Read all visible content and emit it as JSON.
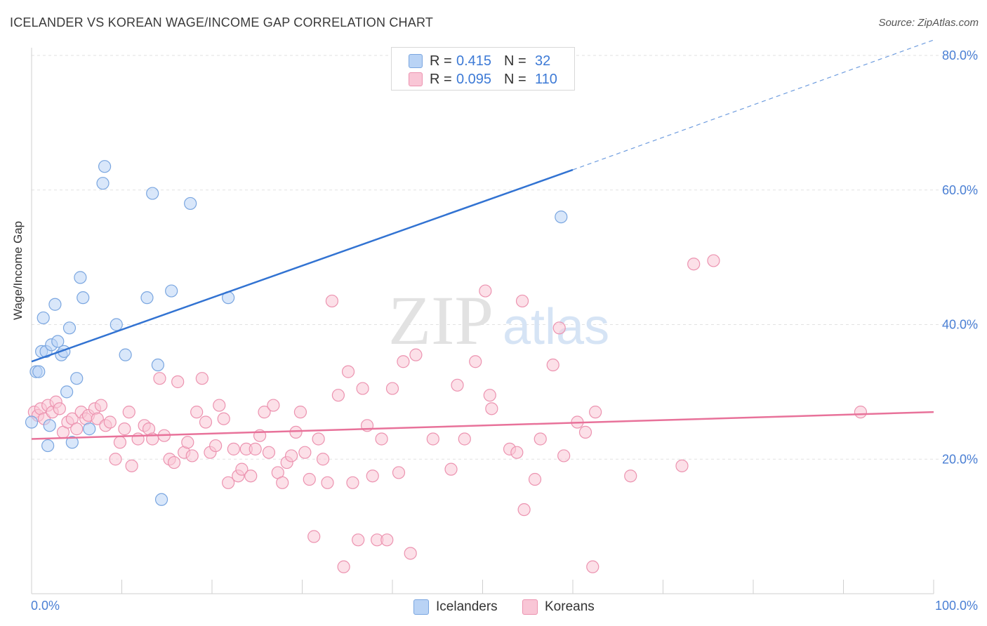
{
  "title": "ICELANDER VS KOREAN WAGE/INCOME GAP CORRELATION CHART",
  "source": "Source: ZipAtlas.com",
  "watermark": {
    "zip": "ZIP",
    "atlas": "atlas"
  },
  "legend": {
    "rows": [
      {
        "r_label": "R =",
        "r_value": "0.415",
        "n_label": "N =",
        "n_value": "32",
        "fill": "#b9d3f5",
        "stroke": "#7aa6e0"
      },
      {
        "r_label": "R =",
        "r_value": "0.095",
        "n_label": "N =",
        "n_value": "110",
        "fill": "#f9c6d6",
        "stroke": "#ec93b0"
      }
    ]
  },
  "bottom_legend": [
    {
      "label": "Icelanders",
      "fill": "#b9d3f5",
      "stroke": "#7aa6e0"
    },
    {
      "label": "Koreans",
      "fill": "#f9c6d6",
      "stroke": "#ec93b0"
    }
  ],
  "chart_data": {
    "type": "scatter",
    "ylabel": "Wage/Income Gap",
    "xlim": [
      0,
      100
    ],
    "ylim": [
      0,
      80
    ],
    "x_tick_labels": {
      "min": "0.0%",
      "max": "100.0%"
    },
    "y_ticks": [
      20,
      40,
      60,
      80
    ],
    "y_tick_labels": [
      "20.0%",
      "40.0%",
      "60.0%",
      "80.0%"
    ],
    "grid": true,
    "colors": {
      "icelanders": "#3273d2",
      "koreans": "#e8729a",
      "tick_text": "#4a7fd4"
    },
    "series": [
      {
        "name": "Icelanders",
        "trend": {
          "x0": 0,
          "y0": 34.5,
          "x1": 60,
          "y1": 63,
          "dash_to_x": 100,
          "dash_to_y": 82.3
        },
        "points": [
          [
            0.0,
            25.5
          ],
          [
            0.5,
            33.0
          ],
          [
            0.8,
            33.0
          ],
          [
            1.1,
            36.0
          ],
          [
            1.3,
            41.0
          ],
          [
            1.6,
            36.0
          ],
          [
            1.8,
            22.0
          ],
          [
            2.2,
            37.0
          ],
          [
            2.6,
            43.0
          ],
          [
            2.9,
            37.5
          ],
          [
            3.3,
            35.5
          ],
          [
            3.6,
            36.0
          ],
          [
            3.9,
            30.0
          ],
          [
            4.2,
            39.5
          ],
          [
            4.5,
            22.5
          ],
          [
            5.0,
            32.0
          ],
          [
            5.4,
            47.0
          ],
          [
            5.7,
            44.0
          ],
          [
            6.4,
            24.5
          ],
          [
            7.9,
            61.0
          ],
          [
            8.1,
            63.5
          ],
          [
            9.4,
            40.0
          ],
          [
            10.4,
            35.5
          ],
          [
            12.8,
            44.0
          ],
          [
            13.4,
            59.5
          ],
          [
            14.0,
            34.0
          ],
          [
            14.4,
            14.0
          ],
          [
            15.5,
            45.0
          ],
          [
            17.6,
            58.0
          ],
          [
            21.8,
            44.0
          ],
          [
            58.7,
            56.0
          ],
          [
            2.0,
            25.0
          ]
        ]
      },
      {
        "name": "Koreans",
        "trend": {
          "x0": 0,
          "y0": 23.0,
          "x1": 100,
          "y1": 27.0
        },
        "points": [
          [
            0.3,
            27.0
          ],
          [
            0.7,
            26.5
          ],
          [
            1.0,
            27.5
          ],
          [
            1.4,
            26.0
          ],
          [
            1.8,
            28.0
          ],
          [
            2.3,
            27.0
          ],
          [
            2.7,
            28.5
          ],
          [
            3.1,
            27.5
          ],
          [
            3.5,
            24.0
          ],
          [
            4.0,
            25.5
          ],
          [
            4.5,
            26.0
          ],
          [
            5.0,
            24.5
          ],
          [
            5.5,
            27.0
          ],
          [
            6.0,
            26.0
          ],
          [
            6.3,
            26.5
          ],
          [
            7.0,
            27.5
          ],
          [
            7.3,
            26.0
          ],
          [
            7.7,
            28.0
          ],
          [
            8.2,
            25.0
          ],
          [
            8.7,
            25.5
          ],
          [
            9.3,
            20.0
          ],
          [
            9.8,
            22.5
          ],
          [
            10.3,
            24.5
          ],
          [
            10.8,
            27.0
          ],
          [
            11.1,
            19.0
          ],
          [
            11.8,
            23.0
          ],
          [
            12.5,
            25.0
          ],
          [
            13.0,
            24.5
          ],
          [
            13.4,
            23.0
          ],
          [
            14.2,
            32.0
          ],
          [
            14.7,
            23.5
          ],
          [
            15.3,
            20.0
          ],
          [
            15.8,
            19.5
          ],
          [
            16.2,
            31.5
          ],
          [
            16.9,
            21.0
          ],
          [
            17.3,
            22.5
          ],
          [
            17.8,
            20.5
          ],
          [
            18.3,
            27.0
          ],
          [
            18.9,
            32.0
          ],
          [
            19.3,
            25.5
          ],
          [
            19.8,
            21.0
          ],
          [
            20.4,
            22.0
          ],
          [
            20.8,
            28.0
          ],
          [
            21.3,
            26.0
          ],
          [
            21.8,
            16.5
          ],
          [
            22.4,
            21.5
          ],
          [
            22.9,
            17.5
          ],
          [
            23.3,
            18.5
          ],
          [
            23.8,
            21.5
          ],
          [
            24.3,
            17.5
          ],
          [
            24.8,
            21.5
          ],
          [
            25.3,
            23.5
          ],
          [
            25.8,
            27.0
          ],
          [
            26.3,
            21.0
          ],
          [
            26.8,
            28.0
          ],
          [
            27.3,
            18.0
          ],
          [
            27.8,
            16.5
          ],
          [
            28.3,
            19.5
          ],
          [
            28.8,
            20.5
          ],
          [
            29.3,
            24.0
          ],
          [
            29.8,
            27.0
          ],
          [
            30.3,
            21.0
          ],
          [
            30.8,
            17.0
          ],
          [
            31.3,
            8.5
          ],
          [
            31.8,
            23.0
          ],
          [
            32.3,
            20.0
          ],
          [
            32.8,
            16.5
          ],
          [
            33.3,
            43.5
          ],
          [
            34.0,
            29.5
          ],
          [
            34.6,
            4.0
          ],
          [
            35.1,
            33.0
          ],
          [
            35.6,
            16.5
          ],
          [
            36.2,
            8.0
          ],
          [
            36.7,
            30.5
          ],
          [
            37.2,
            25.0
          ],
          [
            37.8,
            17.5
          ],
          [
            38.3,
            8.0
          ],
          [
            38.8,
            23.0
          ],
          [
            39.4,
            8.0
          ],
          [
            40.0,
            30.5
          ],
          [
            40.7,
            18.0
          ],
          [
            41.2,
            34.5
          ],
          [
            42.0,
            6.0
          ],
          [
            42.6,
            35.5
          ],
          [
            44.5,
            23.0
          ],
          [
            46.5,
            18.5
          ],
          [
            47.2,
            31.0
          ],
          [
            48.0,
            23.0
          ],
          [
            49.2,
            34.5
          ],
          [
            50.3,
            45.0
          ],
          [
            50.8,
            29.5
          ],
          [
            51.0,
            27.5
          ],
          [
            53.0,
            21.5
          ],
          [
            53.8,
            21.0
          ],
          [
            54.4,
            43.5
          ],
          [
            54.6,
            12.5
          ],
          [
            55.8,
            17.0
          ],
          [
            56.4,
            23.0
          ],
          [
            57.8,
            34.0
          ],
          [
            58.5,
            39.5
          ],
          [
            59.0,
            20.5
          ],
          [
            60.5,
            25.5
          ],
          [
            61.4,
            24.0
          ],
          [
            62.2,
            4.0
          ],
          [
            62.5,
            27.0
          ],
          [
            66.4,
            17.5
          ],
          [
            72.1,
            19.0
          ],
          [
            73.4,
            49.0
          ],
          [
            75.6,
            49.5
          ],
          [
            91.9,
            27.0
          ]
        ]
      }
    ]
  }
}
